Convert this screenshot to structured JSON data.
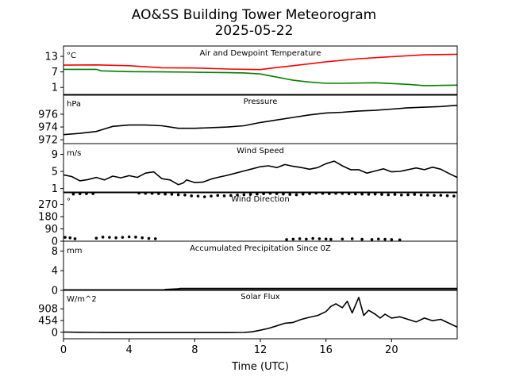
{
  "chart_data": {
    "type": "line",
    "title": "AO&SS Building Tower Meteorogram",
    "subtitle": "2025-05-22",
    "xlabel": "Time (UTC)",
    "xlim": [
      0,
      24
    ],
    "x_ticks": [
      0,
      4,
      8,
      12,
      16,
      20
    ],
    "panels": [
      {
        "name": "temperature",
        "label": "Air and Dewpoint Temperature",
        "unit": "°C",
        "ylim": [
          -2,
          17
        ],
        "y_ticks": [
          1,
          7,
          13
        ],
        "series": [
          {
            "color": "#ff0000",
            "style": "line",
            "points": [
              [
                0,
                9.6
              ],
              [
                2,
                9.7
              ],
              [
                4,
                9.4
              ],
              [
                6,
                8.6
              ],
              [
                8,
                8.5
              ],
              [
                10,
                8.1
              ],
              [
                12,
                7.9
              ],
              [
                13,
                8.7
              ],
              [
                14,
                9.4
              ],
              [
                16,
                10.9
              ],
              [
                18,
                12.1
              ],
              [
                20,
                12.9
              ],
              [
                22,
                13.6
              ],
              [
                24,
                13.8
              ]
            ]
          },
          {
            "color": "#008000",
            "style": "line",
            "points": [
              [
                0,
                8.0
              ],
              [
                2,
                8.0
              ],
              [
                2.3,
                7.4
              ],
              [
                4,
                7.1
              ],
              [
                6,
                7.0
              ],
              [
                8,
                6.9
              ],
              [
                10,
                6.7
              ],
              [
                11,
                6.6
              ],
              [
                12,
                6.2
              ],
              [
                13,
                5.0
              ],
              [
                14,
                3.8
              ],
              [
                15,
                3.1
              ],
              [
                16,
                2.6
              ],
              [
                17,
                2.6
              ],
              [
                19,
                2.8
              ],
              [
                21,
                2.2
              ],
              [
                22,
                1.7
              ],
              [
                24,
                1.9
              ]
            ]
          }
        ]
      },
      {
        "name": "pressure",
        "label": "Pressure",
        "unit": "hPa",
        "ylim": [
          971.4,
          979.1
        ],
        "y_ticks": [
          972,
          974,
          976
        ],
        "series": [
          {
            "color": "#000000",
            "style": "line",
            "points": [
              [
                0,
                972.8
              ],
              [
                1,
                973.0
              ],
              [
                2,
                973.3
              ],
              [
                3,
                974.1
              ],
              [
                4,
                974.3
              ],
              [
                5,
                974.3
              ],
              [
                6,
                974.2
              ],
              [
                7,
                973.8
              ],
              [
                8,
                973.8
              ],
              [
                9,
                973.9
              ],
              [
                10,
                974.0
              ],
              [
                11,
                974.2
              ],
              [
                12,
                974.7
              ],
              [
                13,
                975.1
              ],
              [
                14,
                975.5
              ],
              [
                15,
                975.9
              ],
              [
                16,
                976.2
              ],
              [
                17,
                976.3
              ],
              [
                18,
                976.5
              ],
              [
                19,
                976.6
              ],
              [
                20,
                976.8
              ],
              [
                21,
                977.0
              ],
              [
                22,
                977.1
              ],
              [
                23,
                977.2
              ],
              [
                24,
                977.4
              ]
            ]
          }
        ]
      },
      {
        "name": "wind-speed",
        "label": "Wind Speed",
        "unit": "m/s",
        "ylim": [
          0,
          11.5
        ],
        "y_ticks": [
          1,
          5,
          9
        ],
        "series": [
          {
            "color": "#000000",
            "style": "line",
            "points": [
              [
                0,
                4.2
              ],
              [
                0.5,
                3.8
              ],
              [
                1,
                2.8
              ],
              [
                1.5,
                3.1
              ],
              [
                2,
                3.6
              ],
              [
                2.5,
                3.0
              ],
              [
                3,
                3.9
              ],
              [
                3.5,
                3.5
              ],
              [
                4,
                4.0
              ],
              [
                4.5,
                3.6
              ],
              [
                5,
                4.6
              ],
              [
                5.5,
                4.9
              ],
              [
                6,
                3.3
              ],
              [
                6.5,
                3.0
              ],
              [
                7,
                1.9
              ],
              [
                7.3,
                2.3
              ],
              [
                7.5,
                3.0
              ],
              [
                8,
                2.4
              ],
              [
                8.5,
                2.5
              ],
              [
                9,
                3.2
              ],
              [
                9.5,
                3.7
              ],
              [
                10,
                4.1
              ],
              [
                10.5,
                4.6
              ],
              [
                11,
                5.1
              ],
              [
                11.5,
                5.6
              ],
              [
                12,
                6.1
              ],
              [
                12.5,
                6.3
              ],
              [
                13,
                5.9
              ],
              [
                13.5,
                6.6
              ],
              [
                14,
                6.2
              ],
              [
                14.5,
                5.9
              ],
              [
                15,
                5.5
              ],
              [
                15.5,
                5.9
              ],
              [
                16,
                6.8
              ],
              [
                16.5,
                7.4
              ],
              [
                17,
                6.3
              ],
              [
                17.5,
                5.4
              ],
              [
                18,
                5.4
              ],
              [
                18.5,
                4.6
              ],
              [
                19,
                5.1
              ],
              [
                19.5,
                5.6
              ],
              [
                20,
                4.9
              ],
              [
                20.5,
                5.0
              ],
              [
                21,
                5.4
              ],
              [
                21.5,
                5.8
              ],
              [
                22,
                5.4
              ],
              [
                22.5,
                6.0
              ],
              [
                23,
                5.5
              ],
              [
                23.5,
                4.5
              ],
              [
                24,
                3.6
              ]
            ]
          }
        ]
      },
      {
        "name": "wind-direction",
        "label": "Wind Direction",
        "unit": "°",
        "ylim": [
          0,
          360
        ],
        "y_ticks": [
          0,
          90,
          180,
          270
        ],
        "series": [
          {
            "color": "#000000",
            "style": "dots",
            "points": [
              [
                0.1,
                28
              ],
              [
                0.4,
                25
              ],
              [
                0.7,
                18
              ],
              [
                0.6,
                345
              ],
              [
                1.0,
                347
              ],
              [
                1.4,
                348
              ],
              [
                1.8,
                348
              ],
              [
                2.0,
                22
              ],
              [
                2.4,
                30
              ],
              [
                2.8,
                28
              ],
              [
                3.2,
                25
              ],
              [
                3.6,
                28
              ],
              [
                4.0,
                32
              ],
              [
                4.4,
                30
              ],
              [
                4.8,
                25
              ],
              [
                5.2,
                20
              ],
              [
                5.6,
                18
              ],
              [
                4.6,
                352
              ],
              [
                5.0,
                350
              ],
              [
                5.4,
                350
              ],
              [
                5.8,
                348
              ],
              [
                6.2,
                345
              ],
              [
                6.6,
                343
              ],
              [
                7.0,
                340
              ],
              [
                7.4,
                338
              ],
              [
                7.8,
                332
              ],
              [
                8.2,
                330
              ],
              [
                8.6,
                325
              ],
              [
                9.0,
                330
              ],
              [
                9.4,
                335
              ],
              [
                9.8,
                332
              ],
              [
                10.2,
                335
              ],
              [
                10.6,
                338
              ],
              [
                11.0,
                340
              ],
              [
                11.4,
                342
              ],
              [
                11.8,
                345
              ],
              [
                12.2,
                347
              ],
              [
                12.6,
                350
              ],
              [
                13.0,
                348
              ],
              [
                13.4,
                345
              ],
              [
                13.8,
                342
              ],
              [
                14.2,
                340
              ],
              [
                14.6,
                345
              ],
              [
                15.0,
                348
              ],
              [
                15.4,
                352
              ],
              [
                15.8,
                350
              ],
              [
                16.2,
                348
              ],
              [
                16.6,
                350
              ],
              [
                17.0,
                349
              ],
              [
                17.4,
                347
              ],
              [
                17.8,
                346
              ],
              [
                18.2,
                345
              ],
              [
                18.6,
                343
              ],
              [
                19.0,
                345
              ],
              [
                19.4,
                342
              ],
              [
                19.8,
                340
              ],
              [
                20.2,
                342
              ],
              [
                20.6,
                338
              ],
              [
                21.0,
                340
              ],
              [
                21.4,
                342
              ],
              [
                21.8,
                338
              ],
              [
                22.2,
                337
              ],
              [
                22.6,
                335
              ],
              [
                23.0,
                336
              ],
              [
                23.4,
                333
              ],
              [
                23.8,
                330
              ],
              [
                13.6,
                12
              ],
              [
                14.0,
                15
              ],
              [
                14.4,
                18
              ],
              [
                14.8,
                15
              ],
              [
                15.2,
                20
              ],
              [
                15.6,
                18
              ],
              [
                16.0,
                16
              ],
              [
                16.3,
                14
              ],
              [
                17.0,
                16
              ],
              [
                17.6,
                18
              ],
              [
                18.2,
                14
              ],
              [
                18.8,
                12
              ],
              [
                19.2,
                16
              ],
              [
                19.6,
                14
              ],
              [
                20.0,
                12
              ],
              [
                20.5,
                10
              ]
            ]
          }
        ]
      },
      {
        "name": "precipitation",
        "label": "Accumulated Precipitation Since 0Z",
        "unit": "mm",
        "ylim": [
          0,
          10
        ],
        "y_ticks": [
          0,
          4,
          8
        ],
        "series": [
          {
            "color": "#000000",
            "style": "line",
            "points": [
              [
                0,
                0
              ],
              [
                6.1,
                0
              ],
              [
                6.2,
                0.2
              ],
              [
                7.0,
                0.3
              ],
              [
                7.1,
                0.4
              ],
              [
                24,
                0.4
              ]
            ]
          }
        ]
      },
      {
        "name": "solar-flux",
        "label": "Solar Flux",
        "unit": "W/m^2",
        "ylim": [
          -250,
          1650
        ],
        "y_ticks": [
          0,
          454,
          908
        ],
        "series": [
          {
            "color": "#000000",
            "style": "line",
            "points": [
              [
                0,
                10
              ],
              [
                1,
                0
              ],
              [
                2,
                -5
              ],
              [
                4,
                -10
              ],
              [
                6,
                -10
              ],
              [
                8,
                -10
              ],
              [
                10,
                -10
              ],
              [
                11,
                -5
              ],
              [
                11.5,
                20
              ],
              [
                12,
                80
              ],
              [
                12.5,
                150
              ],
              [
                13,
                250
              ],
              [
                13.5,
                350
              ],
              [
                14,
                380
              ],
              [
                14.5,
                500
              ],
              [
                15,
                580
              ],
              [
                15.5,
                650
              ],
              [
                16,
                800
              ],
              [
                16.3,
                1000
              ],
              [
                16.6,
                1100
              ],
              [
                17,
                950
              ],
              [
                17.3,
                1200
              ],
              [
                17.6,
                750
              ],
              [
                18,
                1350
              ],
              [
                18.3,
                650
              ],
              [
                18.6,
                850
              ],
              [
                19,
                700
              ],
              [
                19.3,
                550
              ],
              [
                19.6,
                700
              ],
              [
                20,
                550
              ],
              [
                20.5,
                600
              ],
              [
                21,
                500
              ],
              [
                21.5,
                400
              ],
              [
                22,
                550
              ],
              [
                22.5,
                450
              ],
              [
                23,
                500
              ],
              [
                23.5,
                350
              ],
              [
                24,
                200
              ]
            ]
          }
        ]
      }
    ]
  }
}
